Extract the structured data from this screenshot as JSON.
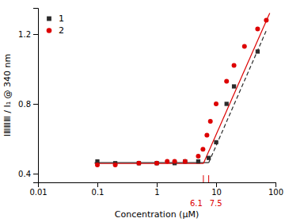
{
  "chart_data": {
    "type": "scatter",
    "xlabel": "Concentration (μM)",
    "ylabel": "IⅢⅢⅢ / I₁ @ 340 nm",
    "log": "x",
    "xlim": [
      0.01,
      100
    ],
    "xticks": [
      0.01,
      0.1,
      1,
      10,
      100
    ],
    "ylim": [
      0.35,
      1.35
    ],
    "yticks": [
      0.4,
      0.8,
      1.2
    ],
    "grid": false,
    "legend": "upper left",
    "series": [
      {
        "type": "line",
        "color": "#2b2b2b",
        "line_style": "solid",
        "x": [
          0.09,
          7.5
        ],
        "values": [
          0.463,
          0.463
        ]
      },
      {
        "type": "line",
        "color": "#2b2b2b",
        "line_style": "dashed",
        "x": [
          7.5,
          70
        ],
        "values": [
          0.463,
          1.22
        ]
      },
      {
        "type": "line",
        "color": "#dd0000",
        "line_style": "solid",
        "x": [
          0.09,
          6.1
        ],
        "values": [
          0.458,
          0.458
        ]
      },
      {
        "type": "line",
        "color": "#dd0000",
        "line_style": "solid",
        "x": [
          6.1,
          80
        ],
        "values": [
          0.458,
          1.32
        ]
      },
      {
        "name": "1",
        "type": "scatter",
        "color": "#2b2b2b",
        "marker": "square",
        "x": [
          0.1,
          0.2,
          0.5,
          1.0,
          2.0,
          3.0,
          5.0,
          7.5,
          10,
          15,
          20,
          50
        ],
        "values": [
          0.47,
          0.46,
          0.46,
          0.46,
          0.46,
          0.47,
          0.47,
          0.49,
          0.58,
          0.8,
          0.9,
          1.1
        ]
      },
      {
        "name": "2",
        "type": "scatter",
        "color": "#dd0000",
        "marker": "circle",
        "x": [
          0.1,
          0.2,
          0.5,
          1.0,
          1.5,
          2.0,
          3.0,
          5.0,
          6.0,
          7.0,
          8.0,
          10,
          15,
          20,
          30,
          50,
          70
        ],
        "values": [
          0.45,
          0.45,
          0.46,
          0.46,
          0.47,
          0.47,
          0.47,
          0.5,
          0.54,
          0.62,
          0.7,
          0.8,
          0.93,
          1.02,
          1.13,
          1.23,
          1.28
        ]
      }
    ],
    "annotations": [
      {
        "text": "6.1",
        "x": 6.1,
        "color": "#dd0000"
      },
      {
        "text": "7.5",
        "x": 7.5,
        "color": "#dd0000"
      }
    ]
  }
}
